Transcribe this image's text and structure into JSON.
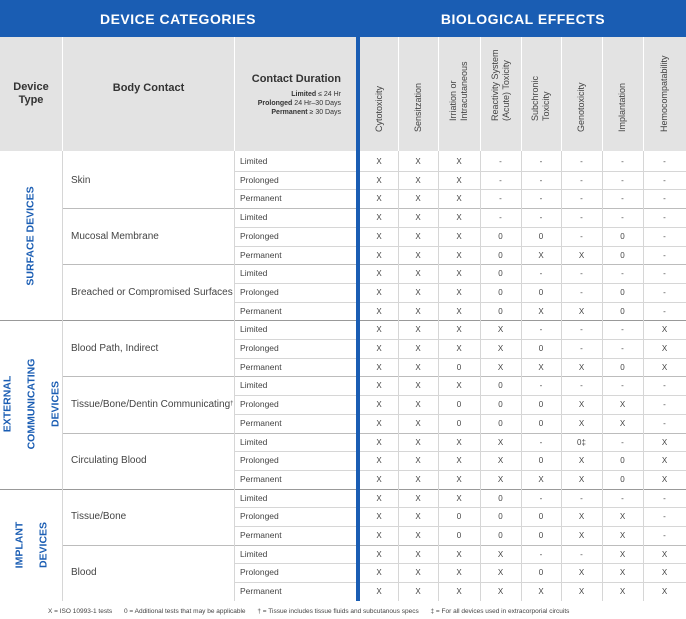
{
  "header": {
    "left_title": "DEVICE CATEGORIES",
    "right_title": "BIOLOGICAL EFFECTS",
    "device_type": "Device Type",
    "body_contact": "Body Contact",
    "contact_duration": "Contact Duration",
    "durations": [
      {
        "label": "Limited",
        "value": "≤ 24 Hr"
      },
      {
        "label": "Prolonged",
        "value": "24 Hr–30 Days"
      },
      {
        "label": "Permanent",
        "value": "≥ 30 Days"
      }
    ],
    "effects": [
      [
        "Cytotoxicity"
      ],
      [
        "Sensitzation"
      ],
      [
        "Irriation or",
        "Intracutaneous"
      ],
      [
        "Reactivity System",
        "(Acute) Toxicity"
      ],
      [
        "Subchronic",
        "Toxicity"
      ],
      [
        "Genotoxicity"
      ],
      [
        "Implantation"
      ],
      [
        "Hemocompatability"
      ]
    ]
  },
  "groups": [
    {
      "name": [
        "SURFACE DEVICES"
      ],
      "contacts": [
        {
          "name": "Skin",
          "rows": [
            [
              "Limited",
              [
                "X",
                "X",
                "X",
                "-",
                "-",
                "-",
                "-",
                "-"
              ]
            ],
            [
              "Prolonged",
              [
                "X",
                "X",
                "X",
                "-",
                "-",
                "-",
                "-",
                "-"
              ]
            ],
            [
              "Permanent",
              [
                "X",
                "X",
                "X",
                "-",
                "-",
                "-",
                "-",
                "-"
              ]
            ]
          ]
        },
        {
          "name": "Mucosal Membrane",
          "rows": [
            [
              "Limited",
              [
                "X",
                "X",
                "X",
                "-",
                "-",
                "-",
                "-",
                "-"
              ]
            ],
            [
              "Prolonged",
              [
                "X",
                "X",
                "X",
                "0",
                "0",
                "-",
                "0",
                "-"
              ]
            ],
            [
              "Permanent",
              [
                "X",
                "X",
                "X",
                "0",
                "X",
                "X",
                "0",
                "-"
              ]
            ]
          ]
        },
        {
          "name": "Breached or Compromised Surfaces",
          "rows": [
            [
              "Limited",
              [
                "X",
                "X",
                "X",
                "0",
                "-",
                "-",
                "-",
                "-"
              ]
            ],
            [
              "Prolonged",
              [
                "X",
                "X",
                "X",
                "0",
                "0",
                "-",
                "0",
                "-"
              ]
            ],
            [
              "Permanent",
              [
                "X",
                "X",
                "X",
                "0",
                "X",
                "X",
                "0",
                "-"
              ]
            ]
          ]
        }
      ]
    },
    {
      "name": [
        "EXTERNAL",
        "COMMUNICATING",
        "DEVICES"
      ],
      "contacts": [
        {
          "name": "Blood Path, Indirect",
          "rows": [
            [
              "Limited",
              [
                "X",
                "X",
                "X",
                "X",
                "-",
                "-",
                "-",
                "X"
              ]
            ],
            [
              "Prolonged",
              [
                "X",
                "X",
                "X",
                "X",
                "0",
                "-",
                "-",
                "X"
              ]
            ],
            [
              "Permanent",
              [
                "X",
                "X",
                "0",
                "X",
                "X",
                "X",
                "0",
                "X"
              ]
            ]
          ]
        },
        {
          "name": "Tissue/Bone/Dentin Communicating",
          "sup": "†",
          "rows": [
            [
              "Limited",
              [
                "X",
                "X",
                "X",
                "0",
                "-",
                "-",
                "-",
                "-"
              ]
            ],
            [
              "Prolonged",
              [
                "X",
                "X",
                "0",
                "0",
                "0",
                "X",
                "X",
                "-"
              ]
            ],
            [
              "Permanent",
              [
                "X",
                "X",
                "0",
                "0",
                "0",
                "X",
                "X",
                "-"
              ]
            ]
          ]
        },
        {
          "name": "Circulating Blood",
          "rows": [
            [
              "Limited",
              [
                "X",
                "X",
                "X",
                "X",
                "-",
                "0‡",
                "-",
                "X"
              ]
            ],
            [
              "Prolonged",
              [
                "X",
                "X",
                "X",
                "X",
                "0",
                "X",
                "0",
                "X"
              ]
            ],
            [
              "Permanent",
              [
                "X",
                "X",
                "X",
                "X",
                "X",
                "X",
                "0",
                "X"
              ]
            ]
          ]
        }
      ]
    },
    {
      "name": [
        "IMPLANT",
        "DEVICES"
      ],
      "contacts": [
        {
          "name": "Tissue/Bone",
          "rows": [
            [
              "Limited",
              [
                "X",
                "X",
                "X",
                "0",
                "-",
                "-",
                "-",
                "-"
              ]
            ],
            [
              "Prolonged",
              [
                "X",
                "X",
                "0",
                "0",
                "0",
                "X",
                "X",
                "-"
              ]
            ],
            [
              "Permanent",
              [
                "X",
                "X",
                "0",
                "0",
                "0",
                "X",
                "X",
                "-"
              ]
            ]
          ]
        },
        {
          "name": "Blood",
          "rows": [
            [
              "Limited",
              [
                "X",
                "X",
                "X",
                "X",
                "-",
                "-",
                "X",
                "X"
              ]
            ],
            [
              "Prolonged",
              [
                "X",
                "X",
                "X",
                "X",
                "0",
                "X",
                "X",
                "X"
              ]
            ],
            [
              "Permanent",
              [
                "X",
                "X",
                "X",
                "X",
                "X",
                "X",
                "X",
                "X"
              ]
            ]
          ]
        }
      ]
    }
  ],
  "legend": [
    "X = ISO 10993-1 tests",
    "0 = Additional tests that may be applicable",
    "† = Tissue includes tissue fluids and subcutanous specs",
    "‡ = For all devices used in extracorporial circuits"
  ]
}
